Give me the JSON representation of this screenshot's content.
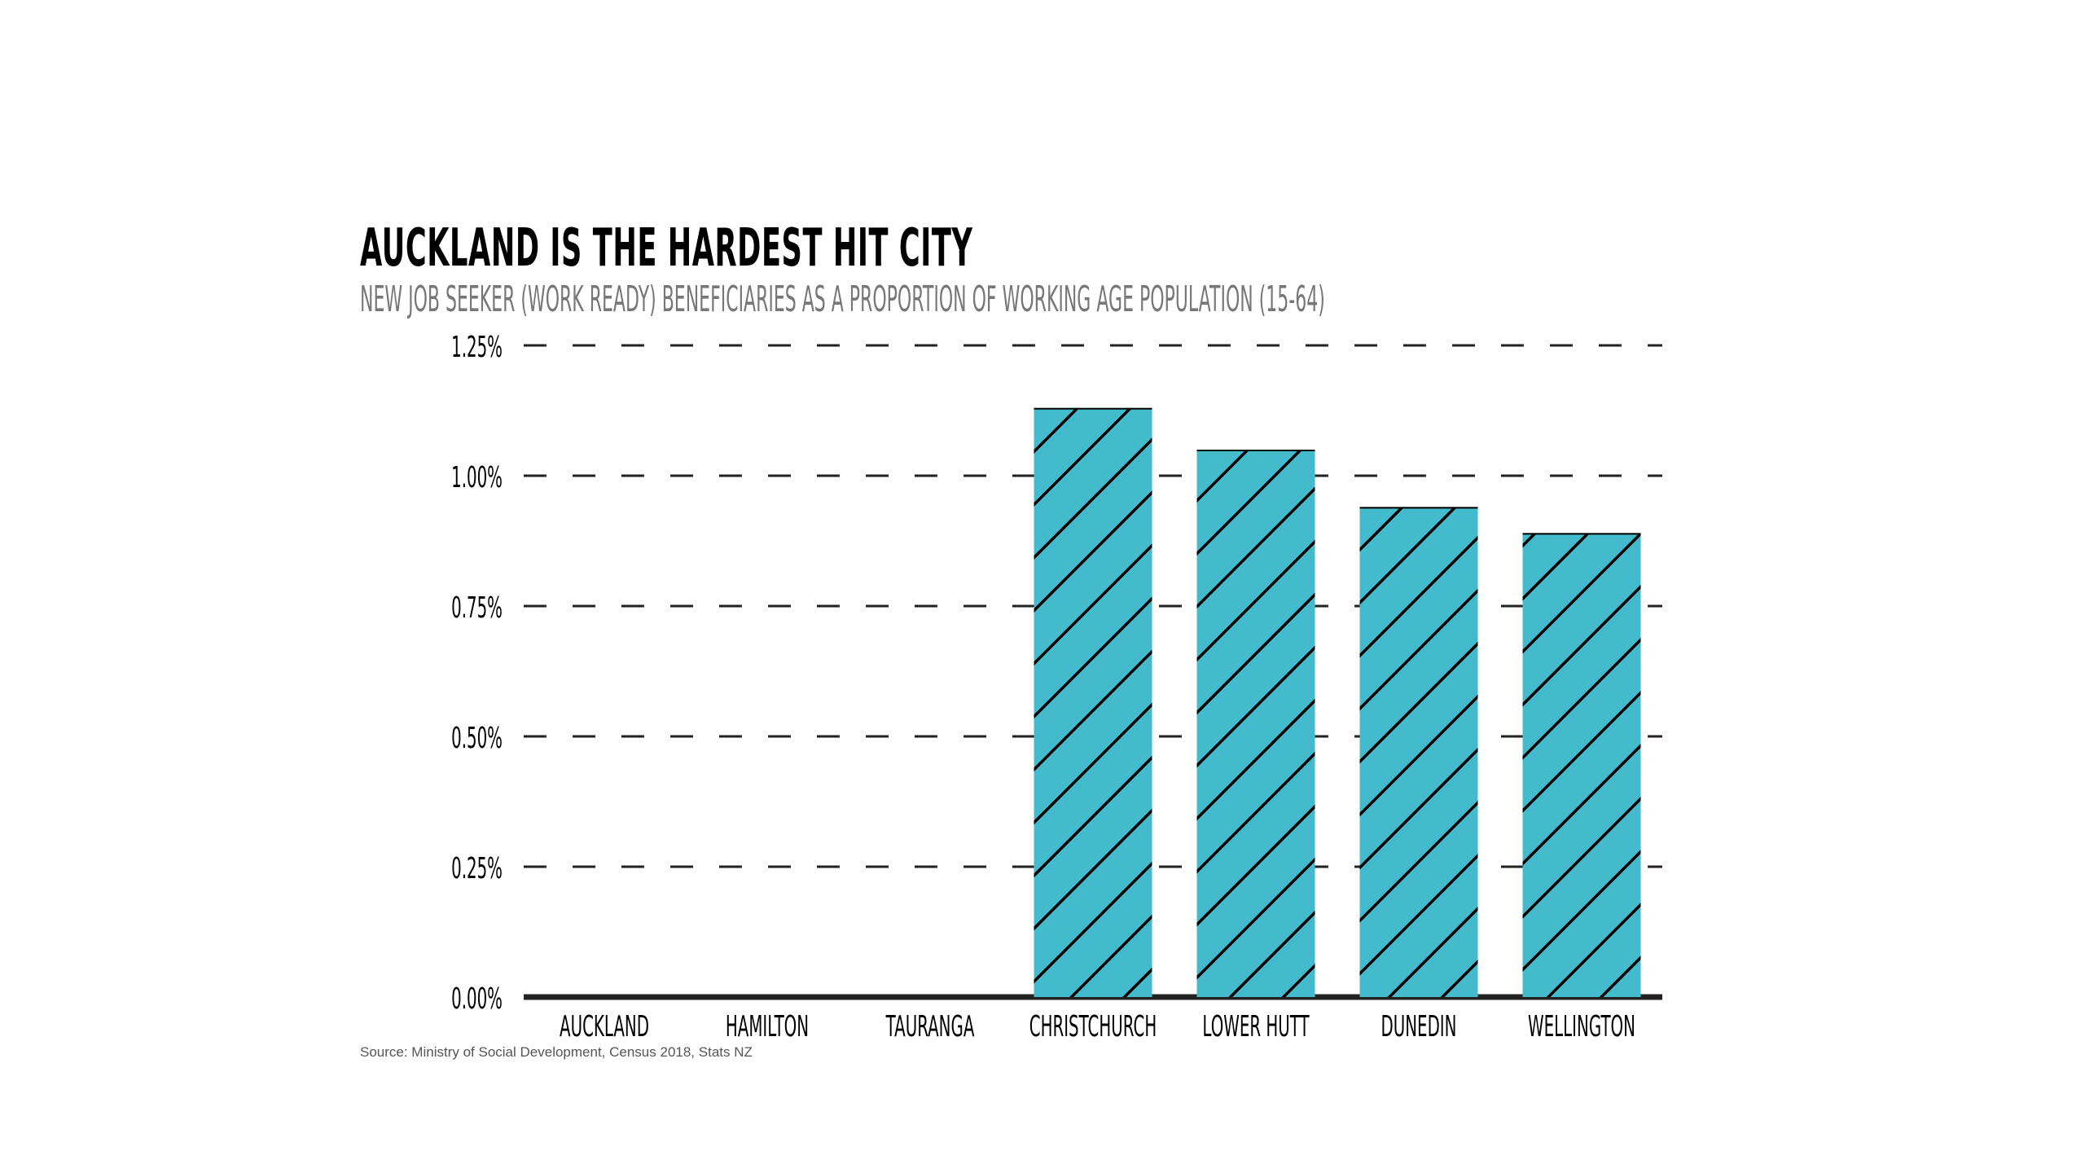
{
  "chart_data": {
    "type": "bar",
    "title": "AUCKLAND IS THE HARDEST HIT CITY",
    "subtitle": "NEW JOB SEEKER (WORK READY) BENEFICIARIES AS A PROPORTION OF WORKING AGE POPULATION (15-64)",
    "categories": [
      "AUCKLAND",
      "HAMILTON",
      "TAURANGA",
      "CHRISTCHURCH",
      "LOWER HUTT",
      "DUNEDIN",
      "WELLINGTON"
    ],
    "values": [
      0,
      0,
      0,
      1.13,
      1.05,
      0.94,
      0.89
    ],
    "unit": "%",
    "ylim": [
      0,
      1.25
    ],
    "yticks": [
      0,
      0.25,
      0.5,
      0.75,
      1.0,
      1.25
    ],
    "ytick_labels": [
      "0.00%",
      "0.25%",
      "0.50%",
      "0.75%",
      "1.00%",
      "1.25%"
    ],
    "grid": "horizontal dashed",
    "bar_color": "#44BBCC",
    "bar_pattern": "diagonal black hatch",
    "source": "Source: Ministry of Social Development, Census 2018, Stats NZ"
  }
}
